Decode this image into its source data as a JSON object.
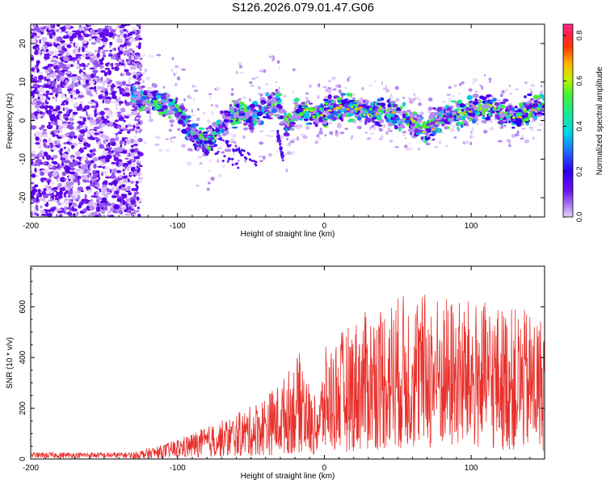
{
  "title": "S126.2026.079.01.47.G06",
  "chart_data": [
    {
      "type": "heatmap",
      "name": "spectrogram",
      "xlabel": "Height of straight line (km)",
      "ylabel": "Frequency (Hz)",
      "xlim": [
        -200,
        150
      ],
      "ylim": [
        -25,
        25
      ],
      "xticks": [
        -200,
        -100,
        0,
        100
      ],
      "yticks": [
        -20,
        -10,
        0,
        10,
        20
      ],
      "ridge_start": -130,
      "ridge": [
        [
          -130,
          6
        ],
        [
          -115,
          5
        ],
        [
          -100,
          3
        ],
        [
          -90,
          -3
        ],
        [
          -80,
          -6
        ],
        [
          -70,
          -1
        ],
        [
          -60,
          2
        ],
        [
          -50,
          1
        ],
        [
          -40,
          3
        ],
        [
          -32,
          5
        ],
        [
          -25,
          -2
        ],
        [
          -20,
          3
        ],
        [
          -10,
          2
        ],
        [
          0,
          2
        ],
        [
          10,
          4
        ],
        [
          20,
          3
        ],
        [
          30,
          2
        ],
        [
          40,
          3
        ],
        [
          50,
          1
        ],
        [
          60,
          0
        ],
        [
          70,
          -3
        ],
        [
          80,
          1
        ],
        [
          90,
          2
        ],
        [
          100,
          2
        ],
        [
          110,
          4
        ],
        [
          120,
          2
        ],
        [
          130,
          1
        ],
        [
          140,
          3
        ],
        [
          150,
          4
        ]
      ],
      "colorbar": {
        "label": "Normalized spectral amplitude",
        "range": [
          0.0,
          0.85
        ],
        "ticks": [
          "0.0",
          "0.2",
          "0.4",
          "0.6",
          "0.8"
        ],
        "tick_values": [
          0.0,
          0.2,
          0.4,
          0.6,
          0.8
        ]
      }
    },
    {
      "type": "line",
      "name": "snr",
      "xlabel": "Height of straight line (km)",
      "ylabel": "SNR (10 * v/v)",
      "xlim": [
        -200,
        150
      ],
      "ylim": [
        0,
        760
      ],
      "xticks": [
        -200,
        -100,
        0,
        100
      ],
      "yticks": [
        0,
        200,
        400,
        600
      ],
      "color": "#e8302b",
      "envelope": [
        [
          -200,
          15
        ],
        [
          -130,
          15
        ],
        [
          -110,
          30
        ],
        [
          -90,
          55
        ],
        [
          -70,
          80
        ],
        [
          -50,
          110
        ],
        [
          -30,
          160
        ],
        [
          -15,
          230
        ],
        [
          -8,
          120
        ],
        [
          -2,
          170
        ],
        [
          0,
          230
        ],
        [
          20,
          290
        ],
        [
          40,
          330
        ],
        [
          60,
          350
        ],
        [
          80,
          340
        ],
        [
          100,
          330
        ],
        [
          120,
          320
        ],
        [
          150,
          300
        ]
      ]
    }
  ]
}
